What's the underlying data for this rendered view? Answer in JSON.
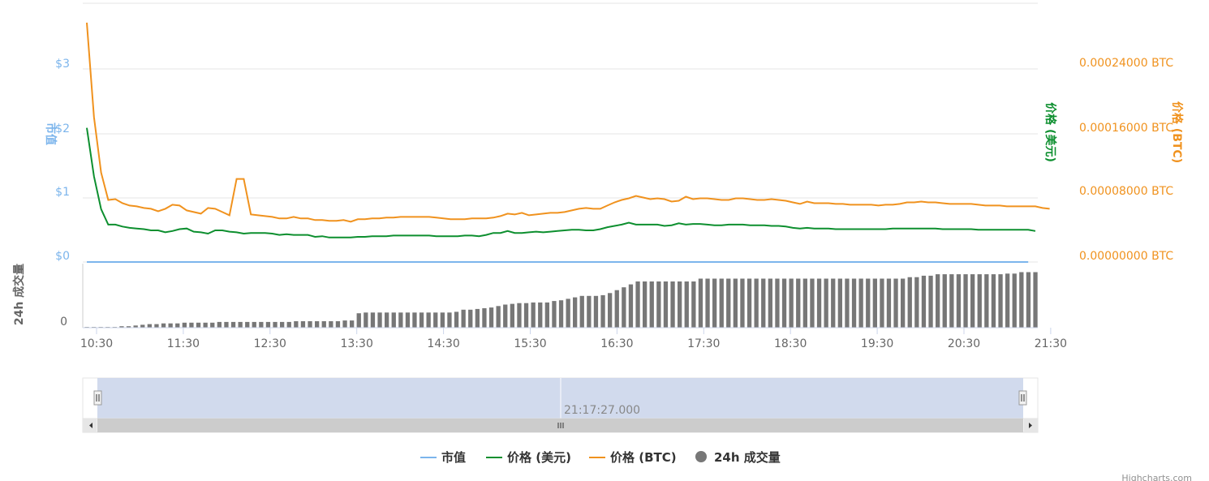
{
  "colors": {
    "market_cap": "#7cb5ec",
    "price_usd": "#0d8f2f",
    "price_btc": "#f0921e",
    "volume": "#777777",
    "grid": "#e6e6e6",
    "tick_text": "#666666",
    "navigator_fill": "#ccd6eb"
  },
  "chart_data": {
    "type": "line",
    "x_ticks": [
      "10:30",
      "11:30",
      "12:30",
      "13:30",
      "14:30",
      "15:30",
      "16:30",
      "17:30",
      "18:30",
      "19:30",
      "20:30",
      "21:30"
    ],
    "y_left": {
      "label": "市值",
      "ticks": [
        "$0",
        "$1",
        "$2",
        "$3"
      ],
      "ylim": [
        0,
        3.5
      ]
    },
    "y_right_usd": {
      "label": "价格 (美元)"
    },
    "y_right_btc": {
      "label": "价格 (BTC)",
      "ticks": [
        "0.00000000 BTC",
        "0.00008000 BTC",
        "0.00016000 BTC",
        "0.00024000 BTC"
      ],
      "ylim": [
        0,
        0.00028
      ]
    },
    "y_volume": {
      "label": "24h 成交量",
      "ticks": [
        "0"
      ]
    },
    "legend": [
      "市值",
      "价格 (美元)",
      "价格 (BTC)",
      "24h 成交量"
    ],
    "navigator_label": "21:17:27.000",
    "credits": "Highcharts.com",
    "series": [
      {
        "name": "市值",
        "values": [
          0,
          0,
          0,
          0,
          0,
          0,
          0,
          0,
          0,
          0,
          0,
          0,
          0,
          0,
          0,
          0,
          0,
          0,
          0,
          0,
          0,
          0,
          0,
          0,
          0,
          0,
          0,
          0,
          0,
          0,
          0,
          0,
          0,
          0,
          0,
          0,
          0,
          0,
          0,
          0,
          0,
          0,
          0,
          0,
          0,
          0,
          0,
          0,
          0,
          0,
          0,
          0,
          0,
          0,
          0,
          0,
          0,
          0,
          0,
          0,
          0,
          0,
          0,
          0,
          0,
          0,
          0,
          0,
          0,
          0,
          0,
          0,
          0,
          0,
          0,
          0,
          0,
          0,
          0,
          0,
          0,
          0,
          0,
          0,
          0,
          0,
          0,
          0,
          0,
          0,
          0,
          0,
          0,
          0,
          0,
          0,
          0,
          0,
          0,
          0,
          0,
          0,
          0,
          0,
          0,
          0,
          0,
          0,
          0,
          0,
          0,
          0,
          0,
          0,
          0,
          0,
          0,
          0,
          0,
          0,
          0,
          0,
          0,
          0,
          0,
          0,
          0,
          0,
          0,
          0,
          0,
          0,
          0
        ]
      },
      {
        "name": "价格 (美元)",
        "values": [
          2.08,
          1.33,
          0.82,
          0.58,
          0.58,
          0.55,
          0.53,
          0.52,
          0.51,
          0.49,
          0.49,
          0.46,
          0.48,
          0.51,
          0.52,
          0.47,
          0.46,
          0.44,
          0.49,
          0.49,
          0.47,
          0.46,
          0.44,
          0.45,
          0.45,
          0.45,
          0.44,
          0.42,
          0.43,
          0.42,
          0.42,
          0.42,
          0.39,
          0.4,
          0.38,
          0.38,
          0.38,
          0.38,
          0.39,
          0.39,
          0.4,
          0.4,
          0.4,
          0.41,
          0.41,
          0.41,
          0.41,
          0.41,
          0.41,
          0.4,
          0.4,
          0.4,
          0.4,
          0.41,
          0.41,
          0.4,
          0.42,
          0.45,
          0.45,
          0.48,
          0.45,
          0.45,
          0.46,
          0.47,
          0.46,
          0.47,
          0.48,
          0.49,
          0.5,
          0.5,
          0.49,
          0.49,
          0.51,
          0.54,
          0.56,
          0.58,
          0.61,
          0.58,
          0.58,
          0.58,
          0.58,
          0.56,
          0.57,
          0.6,
          0.58,
          0.59,
          0.59,
          0.58,
          0.57,
          0.57,
          0.58,
          0.58,
          0.58,
          0.57,
          0.57,
          0.57,
          0.56,
          0.56,
          0.55,
          0.53,
          0.52,
          0.53,
          0.52,
          0.52,
          0.52,
          0.51,
          0.51,
          0.51,
          0.51,
          0.51,
          0.51,
          0.51,
          0.51,
          0.52,
          0.52,
          0.52,
          0.52,
          0.52,
          0.52,
          0.52,
          0.51,
          0.51,
          0.51,
          0.51,
          0.51,
          0.5,
          0.5,
          0.5,
          0.5,
          0.5,
          0.5,
          0.5,
          0.5,
          0.48
        ]
      },
      {
        "name": "价格 (BTC)",
        "values": [
          0.000297,
          0.00018,
          0.000111,
          7.7e-05,
          7.8e-05,
          7.3e-05,
          7e-05,
          6.9e-05,
          6.7e-05,
          6.6e-05,
          6.3e-05,
          6.6e-05,
          7.1e-05,
          7e-05,
          6.4e-05,
          6.2e-05,
          6e-05,
          6.7e-05,
          6.6e-05,
          6.2e-05,
          5.8e-05,
          0.000103,
          0.000103,
          5.9e-05,
          5.8e-05,
          5.7e-05,
          5.6e-05,
          5.4e-05,
          5.4e-05,
          5.6e-05,
          5.4e-05,
          5.4e-05,
          5.2e-05,
          5.2e-05,
          5.1e-05,
          5.1e-05,
          5.2e-05,
          5e-05,
          5.3e-05,
          5.3e-05,
          5.4e-05,
          5.4e-05,
          5.5e-05,
          5.5e-05,
          5.6e-05,
          5.6e-05,
          5.6e-05,
          5.6e-05,
          5.6e-05,
          5.5e-05,
          5.4e-05,
          5.3e-05,
          5.3e-05,
          5.3e-05,
          5.4e-05,
          5.4e-05,
          5.4e-05,
          5.5e-05,
          5.7e-05,
          6e-05,
          5.9e-05,
          6.1e-05,
          5.8e-05,
          5.9e-05,
          6e-05,
          6.1e-05,
          6.1e-05,
          6.2e-05,
          6.4e-05,
          6.6e-05,
          6.7e-05,
          6.6e-05,
          6.6e-05,
          7e-05,
          7.4e-05,
          7.7e-05,
          7.9e-05,
          8.2e-05,
          8e-05,
          7.8e-05,
          7.9e-05,
          7.8e-05,
          7.5e-05,
          7.6e-05,
          8.1e-05,
          7.8e-05,
          7.9e-05,
          7.9e-05,
          7.8e-05,
          7.7e-05,
          7.7e-05,
          7.9e-05,
          7.9e-05,
          7.8e-05,
          7.7e-05,
          7.7e-05,
          7.8e-05,
          7.7e-05,
          7.6e-05,
          7.4e-05,
          7.2e-05,
          7.5e-05,
          7.3e-05,
          7.3e-05,
          7.3e-05,
          7.2e-05,
          7.2e-05,
          7.1e-05,
          7.1e-05,
          7.1e-05,
          7.1e-05,
          7e-05,
          7.1e-05,
          7.1e-05,
          7.2e-05,
          7.4e-05,
          7.4e-05,
          7.5e-05,
          7.4e-05,
          7.4e-05,
          7.3e-05,
          7.2e-05,
          7.2e-05,
          7.2e-05,
          7.2e-05,
          7.1e-05,
          7e-05,
          7e-05,
          7e-05,
          6.9e-05,
          6.9e-05,
          6.9e-05,
          6.9e-05,
          6.9e-05,
          6.7e-05,
          6.6e-05
        ]
      },
      {
        "name": "24h 成交量",
        "values": [
          1,
          1,
          1,
          1,
          1,
          2,
          2,
          3,
          4,
          5,
          5,
          6,
          6,
          6,
          7,
          7,
          7,
          7,
          7,
          8,
          8,
          8,
          8,
          8,
          8,
          8,
          8,
          8,
          8,
          8,
          9,
          9,
          9,
          9,
          9,
          9,
          9,
          10,
          10,
          20,
          21,
          21,
          21,
          21,
          21,
          21,
          21,
          21,
          21,
          21,
          21,
          21,
          21,
          22,
          25,
          25,
          26,
          27,
          28,
          30,
          32,
          33,
          34,
          34,
          35,
          35,
          35,
          37,
          38,
          40,
          42,
          44,
          44,
          44,
          45,
          48,
          52,
          56,
          60,
          64,
          64,
          64,
          64,
          64,
          64,
          64,
          64,
          64,
          68,
          68,
          68,
          68,
          68,
          68,
          68,
          68,
          68,
          68,
          68,
          68,
          68,
          68,
          68,
          68,
          68,
          68,
          68,
          68,
          68,
          68,
          68,
          68,
          68,
          68,
          68,
          68,
          68,
          68,
          70,
          70,
          72,
          72,
          74,
          74,
          74,
          74,
          74,
          74,
          74,
          74,
          74,
          74,
          75,
          75,
          77,
          77,
          77
        ]
      }
    ]
  }
}
